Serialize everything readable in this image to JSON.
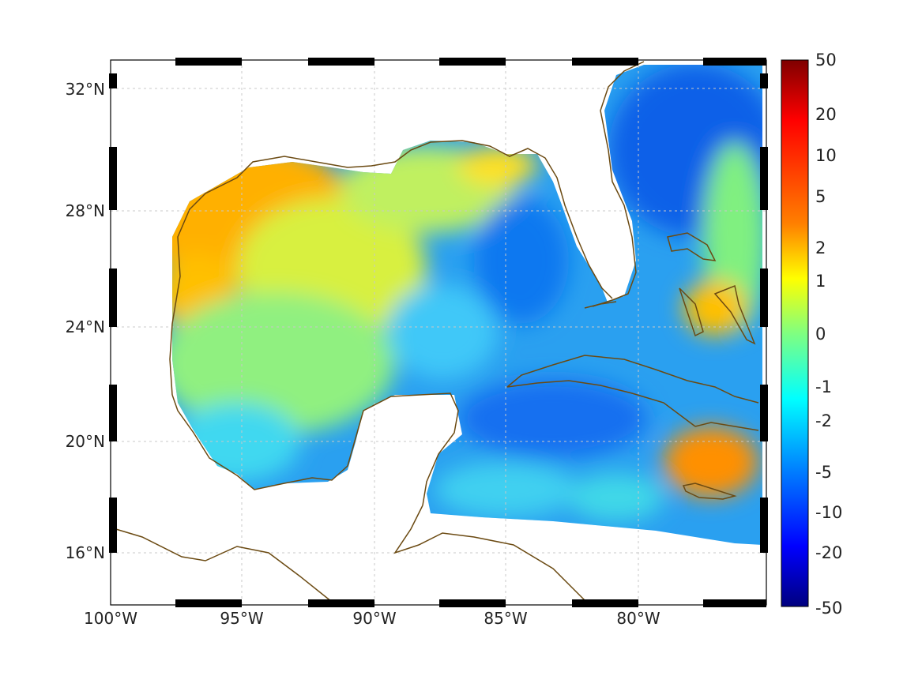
{
  "map": {
    "lat_ticks": [
      "32°N",
      "28°N",
      "24°N",
      "20°N",
      "16°N"
    ],
    "lon_ticks": [
      "100°W",
      "95°W",
      "90°W",
      "85°W",
      "80°W"
    ],
    "extent": {
      "lon_min": -100,
      "lon_max": -75,
      "lat_min": 14.3,
      "lat_max": 32.9
    },
    "coast_color": "#6b4a12",
    "grid": "dashed"
  },
  "colorbar": {
    "labels": [
      "50",
      "20",
      "10",
      "5",
      "2",
      "1",
      "0",
      "-1",
      "-2",
      "-5",
      "-10",
      "-20",
      "-50"
    ],
    "colormap": "jet",
    "colors": [
      "#7f0000",
      "#ff0000",
      "#ff8000",
      "#ffff00",
      "#80ff80",
      "#00ffff",
      "#0080ff",
      "#0000ff",
      "#00007f"
    ]
  }
}
